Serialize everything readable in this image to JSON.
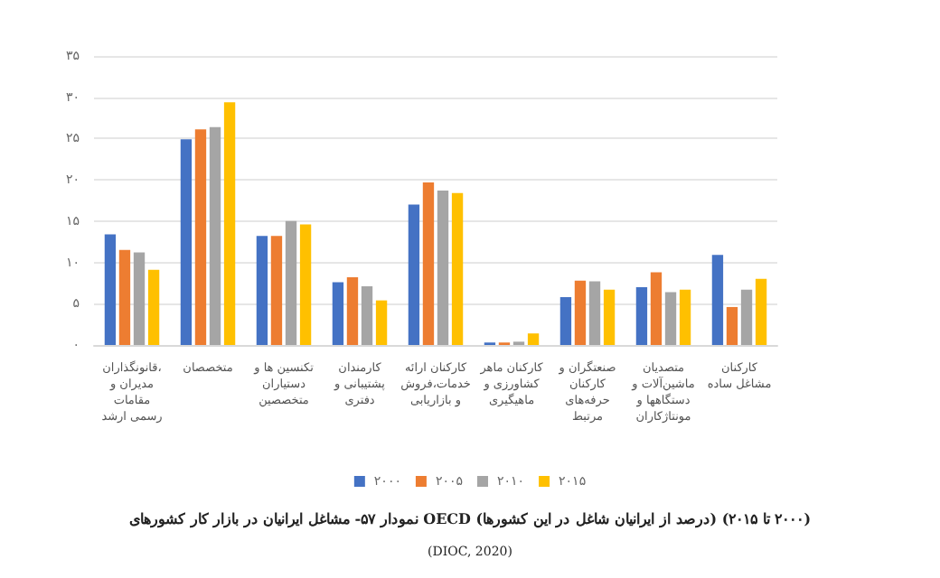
{
  "chart_data": {
    "type": "bar",
    "title": "نمودار ۵۷- مشاغل ایرانیان در بازار کار کشورهای OECD (درصد از ایرانیان شاغل در این کشورها) (۲۰۰۰ تا ۲۰۱۵)",
    "annotations": [
      "(DIOC, 2020)"
    ],
    "categories": [
      "قانونگذاران، مدیران و مقامات رسمی ارشد",
      "متخصصان",
      "تکنسین ها و دستیاران متخصصین",
      "کارمندان پشتیبانی و دفتری",
      "کارکنان ارائه خدمات،فروش و بازاریابی",
      "کارکنان ماهر کشاورزی و ماهیگیری",
      "صنعتگران و کارکنان حرفه‌های مرتبط",
      "متصدیان ماشین‌آلات و دستگاهها و مونتاژکاران",
      "کارکنان مشاغل ساده"
    ],
    "series": [
      {
        "name": "۲۰۰۰",
        "color": "#4472c4",
        "values": [
          13.4,
          24.9,
          13.2,
          7.6,
          17.0,
          0.3,
          5.8,
          7.0,
          10.9
        ]
      },
      {
        "name": "۲۰۰۵",
        "color": "#ed7d31",
        "values": [
          11.5,
          26.1,
          13.2,
          8.2,
          19.7,
          0.3,
          7.8,
          8.8,
          4.6
        ]
      },
      {
        "name": "۲۰۱۰",
        "color": "#a5a5a5",
        "values": [
          11.2,
          26.4,
          15.0,
          7.1,
          18.7,
          0.4,
          7.7,
          6.4,
          6.7
        ]
      },
      {
        "name": "۲۰۱۵",
        "color": "#ffc000",
        "values": [
          9.1,
          29.4,
          14.6,
          5.4,
          18.4,
          1.4,
          6.7,
          6.7,
          8.0
        ]
      }
    ],
    "ylim": [
      0,
      35
    ],
    "yticks": [
      {
        "value": 0,
        "label": "۰"
      },
      {
        "value": 5,
        "label": "۵"
      },
      {
        "value": 10,
        "label": "۱۰"
      },
      {
        "value": 15,
        "label": "۱۵"
      },
      {
        "value": 20,
        "label": "۲۰"
      },
      {
        "value": 25,
        "label": "۲۵"
      },
      {
        "value": 30,
        "label": "۳۰"
      },
      {
        "value": 35,
        "label": "۳۵"
      }
    ],
    "grid": "y",
    "legend": "bottom"
  }
}
